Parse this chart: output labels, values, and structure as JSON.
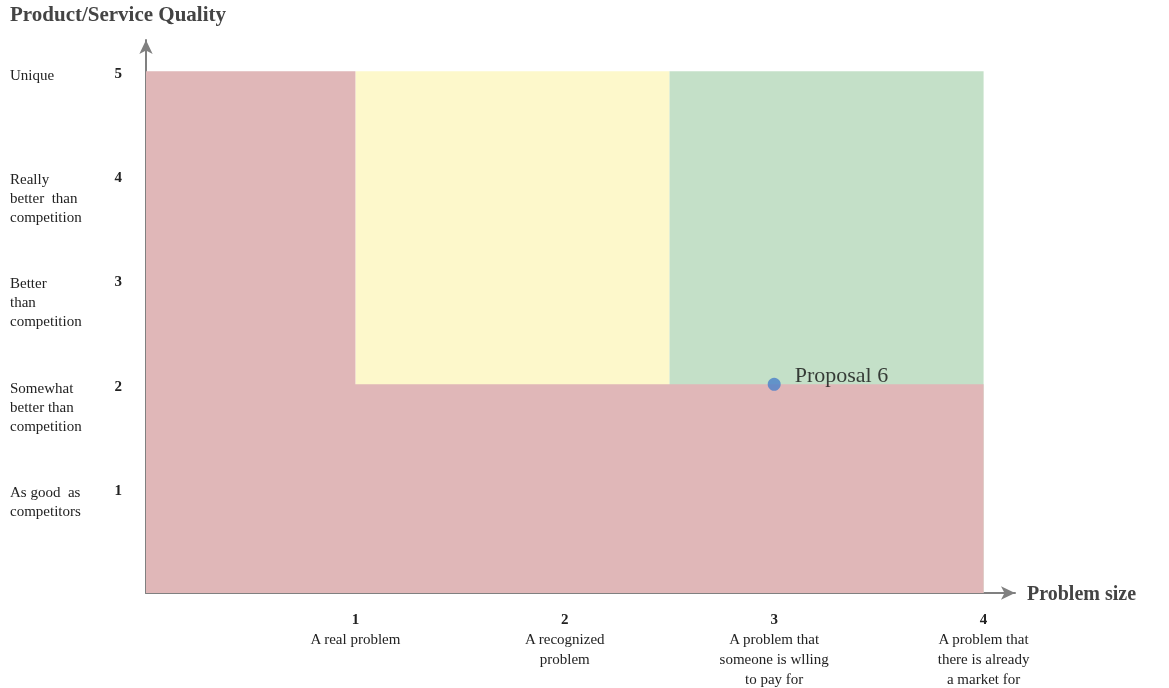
{
  "chart_data": {
    "type": "scatter",
    "xlabel": "Problem size",
    "ylabel": "Product/Service Quality",
    "xlim": [
      0,
      4.15
    ],
    "ylim": [
      0,
      5.3
    ],
    "xticks": [
      {
        "value": 1,
        "label": "1\nA real problem"
      },
      {
        "value": 2,
        "label": "2\nA recognized\nproblem"
      },
      {
        "value": 3,
        "label": "3\nA problem that\nsomeone is wlling\nto pay for"
      },
      {
        "value": 4,
        "label": "4\nA problem that\nthere is already\na market for"
      }
    ],
    "yticks": [
      1,
      2,
      3,
      4,
      5
    ],
    "annotations": [
      "Unique",
      "Really\nbetter  than\ncompetition",
      "Better\nthan\ncompetition",
      "Somewhat\nbetter than\ncompetition",
      "As good  as\ncompetitors"
    ],
    "series": [
      {
        "type": "area",
        "color": "#fdf8cb",
        "x": [
          1,
          2.5
        ],
        "values": [
          5,
          5
        ]
      },
      {
        "type": "area",
        "color": "#c4e0c8",
        "x": [
          2.5,
          4
        ],
        "values": [
          5,
          5
        ]
      },
      {
        "type": "area",
        "color": "#e0b7b8",
        "x": [
          0,
          1,
          1,
          4
        ],
        "values": [
          5,
          5,
          2,
          2
        ]
      },
      {
        "type": "scatter",
        "name": "Proposal 6",
        "color": "#4a7fc9",
        "marker": "circle",
        "x": [
          3
        ],
        "values": [
          2
        ]
      }
    ]
  }
}
